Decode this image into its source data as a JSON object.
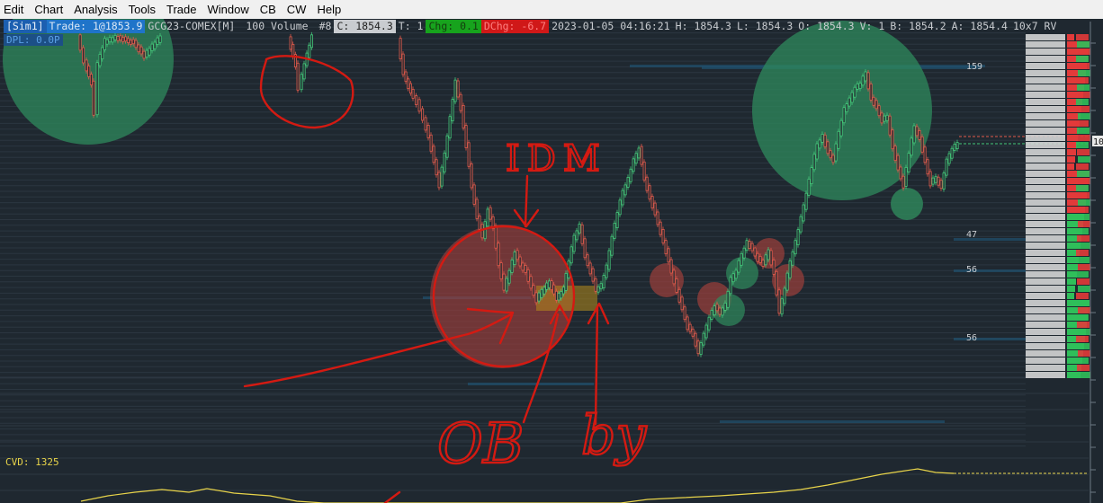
{
  "menu": [
    "Edit",
    "Chart",
    "Analysis",
    "Tools",
    "Trade",
    "Window",
    "CB",
    "CW",
    "Help"
  ],
  "infobar": {
    "sim": "[Sim1]",
    "trade": "Trade: 1@1853.9",
    "symbol": "GCG23-COMEX[M]",
    "volume": "100 Volume",
    "bars": "#8",
    "close": "C: 1854.3",
    "ticks": "T: 1",
    "chg": "Chg: 0.1",
    "dchg": "DChg: -6.7",
    "datetime": "2023-01-05 04:16:21",
    "high": "H: 1854.3",
    "low": "L: 1854.3",
    "open": "O: 1854.3",
    "vol": "V: 1",
    "bid": "B: 1854.2",
    "ask": "A: 1854.4",
    "grid": "10x7 RV"
  },
  "dpl": "DPL: 0.0P",
  "cvd": "CVD: 1325",
  "annotations": {
    "idm": "IDM",
    "ob": "OB",
    "buy": "by"
  },
  "ladder_labels": [
    "159",
    "47",
    "56",
    "56"
  ],
  "price_axis_marker": "10",
  "colors": {
    "background": "#1f2830",
    "bull_candle": "#44c77a",
    "bear_candle": "#e05a4c",
    "highlight_green": "#2f8a5c",
    "highlight_red": "#a8403c",
    "ink": "#d41a12",
    "cvd": "#e8d44a",
    "bid": "#e23a3a",
    "ask": "#2fbf5a"
  }
}
